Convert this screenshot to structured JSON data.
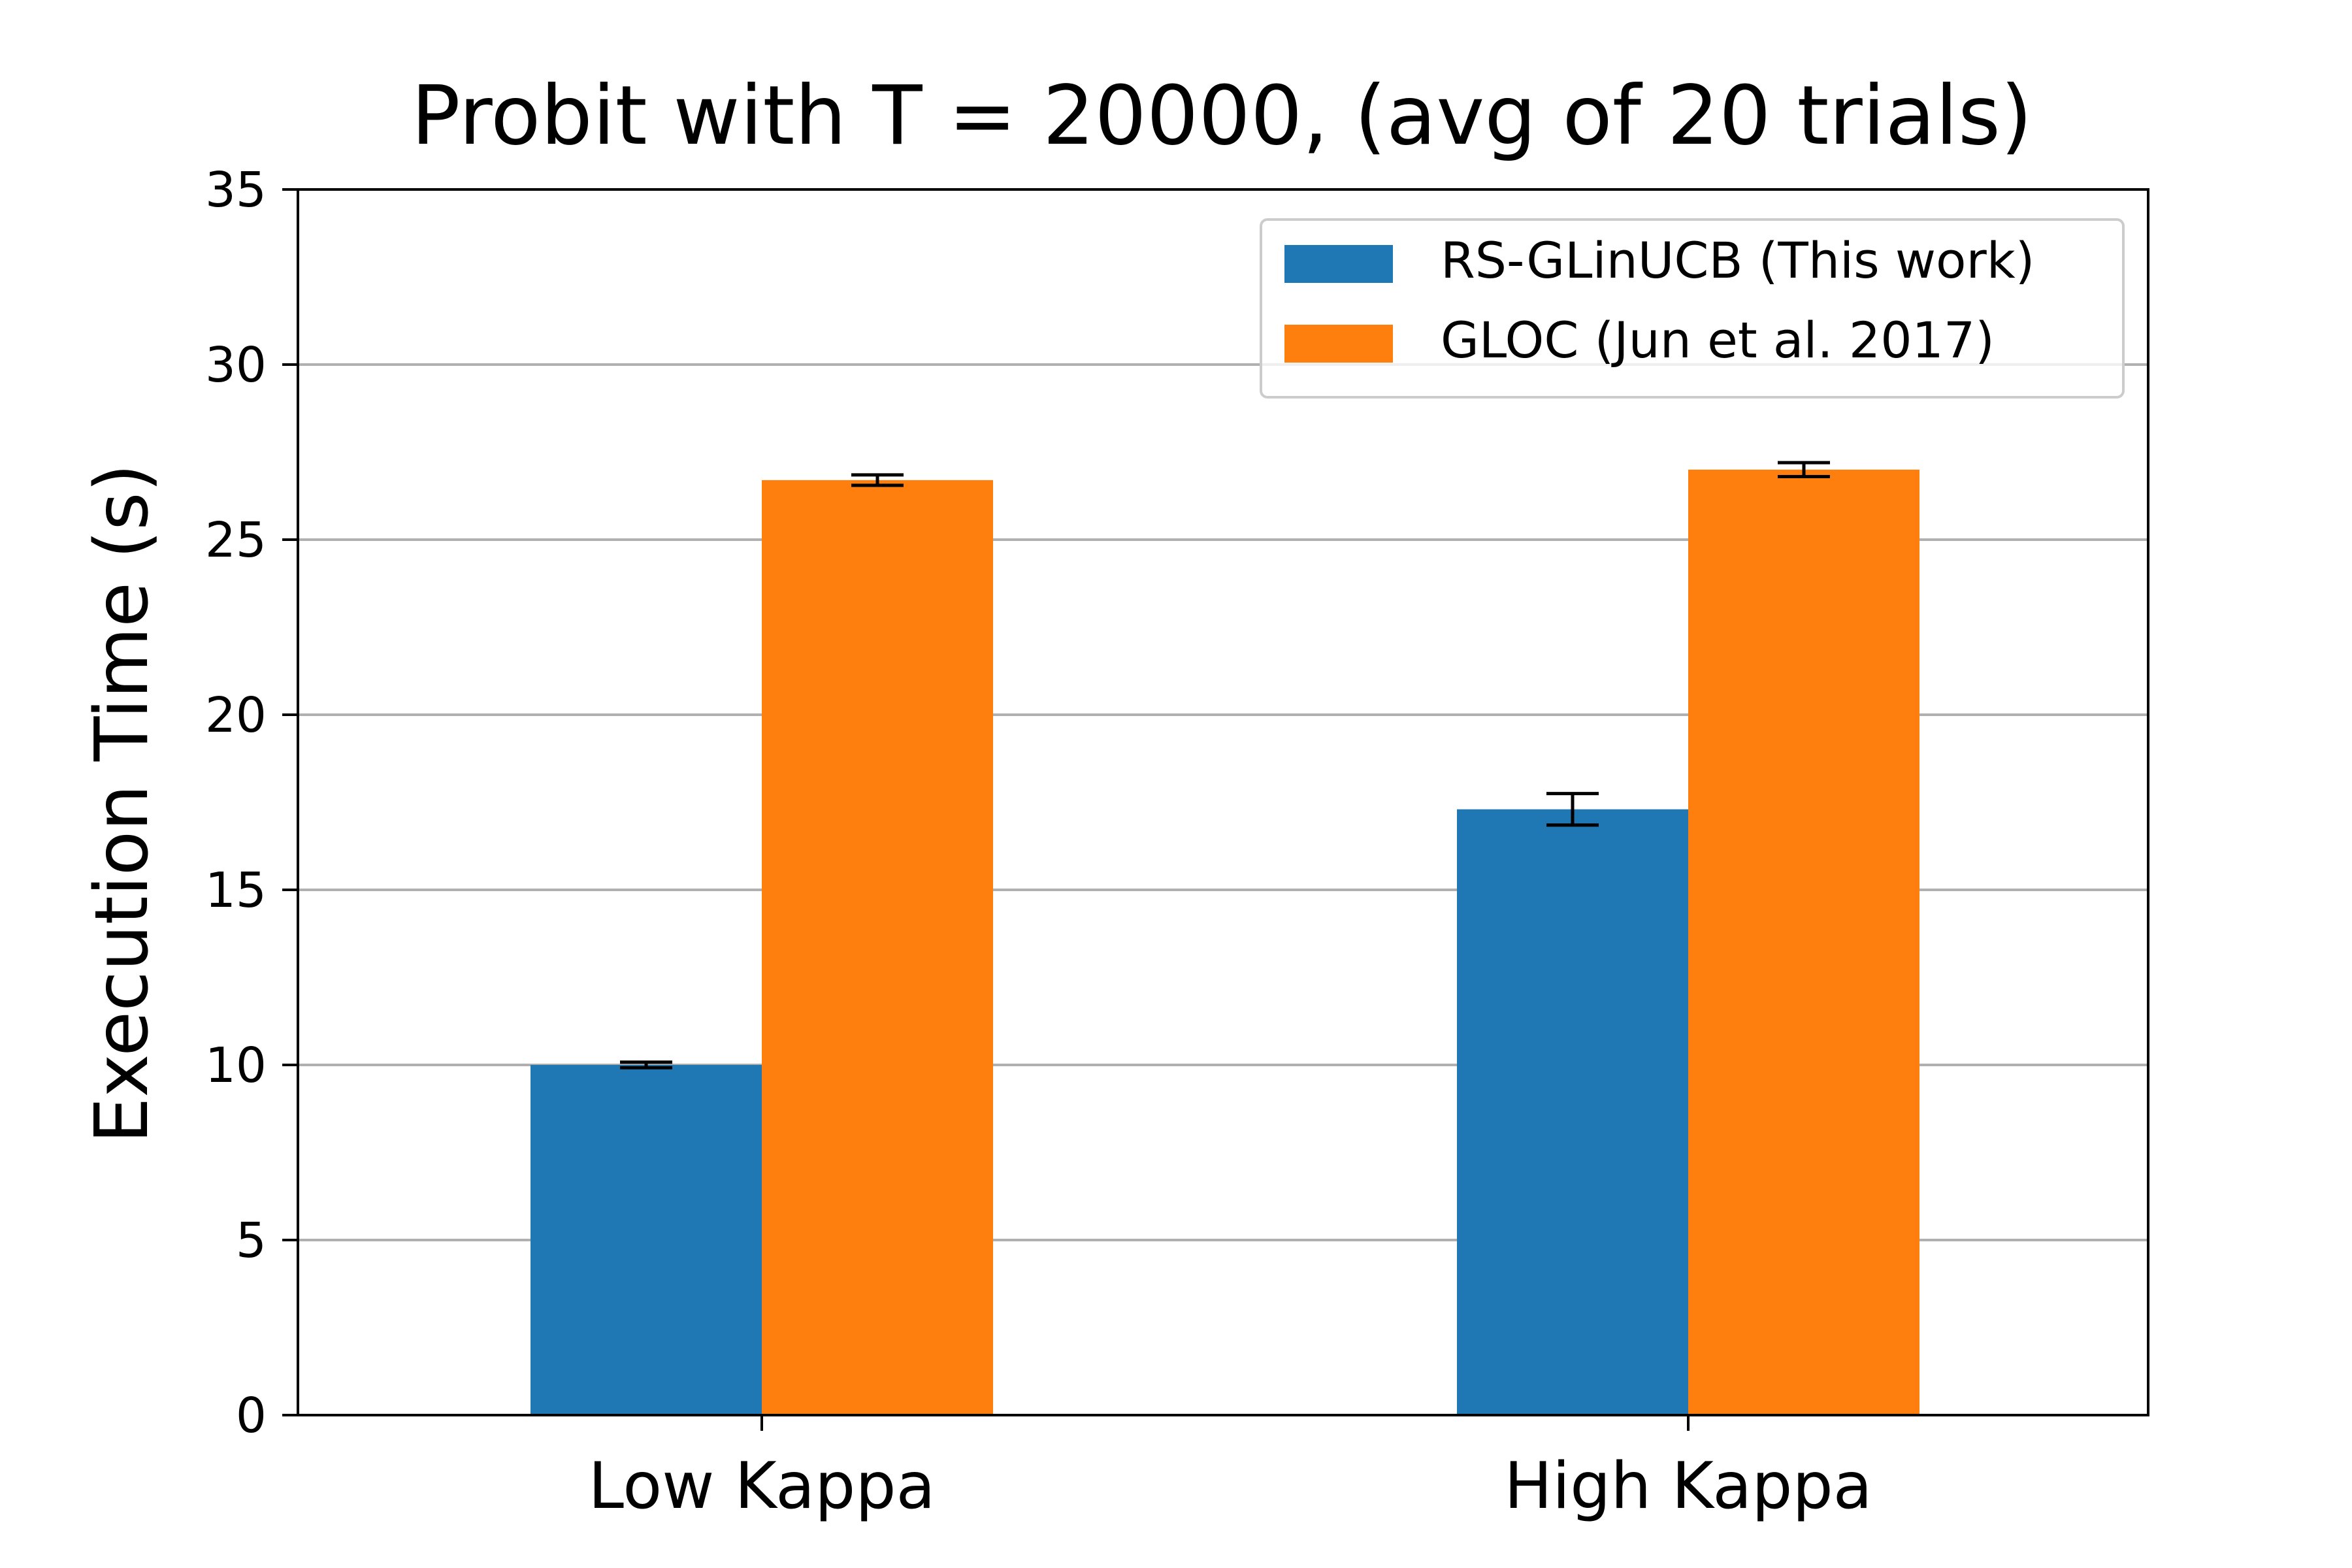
{
  "chart_data": {
    "type": "bar",
    "title": "Probit with T = 20000, (avg of 20 trials)",
    "xlabel": "",
    "ylabel": "Execution Time (s)",
    "ylim": [
      0,
      35
    ],
    "yticks": [
      "0",
      "5",
      "10",
      "15",
      "20",
      "25",
      "30",
      "35"
    ],
    "categories": [
      "Low Kappa",
      "High Kappa"
    ],
    "grid": "y",
    "legend_position": "top-right",
    "series": [
      {
        "name": "RS-GLinUCB (This work)",
        "color": "#1f77b4",
        "values": [
          10.0,
          17.3
        ],
        "errors": [
          0.08,
          0.45
        ]
      },
      {
        "name": "GLOC (Jun et al. 2017)",
        "color": "#ff7f0e",
        "values": [
          26.7,
          27.0
        ],
        "errors": [
          0.15,
          0.2
        ]
      }
    ]
  }
}
